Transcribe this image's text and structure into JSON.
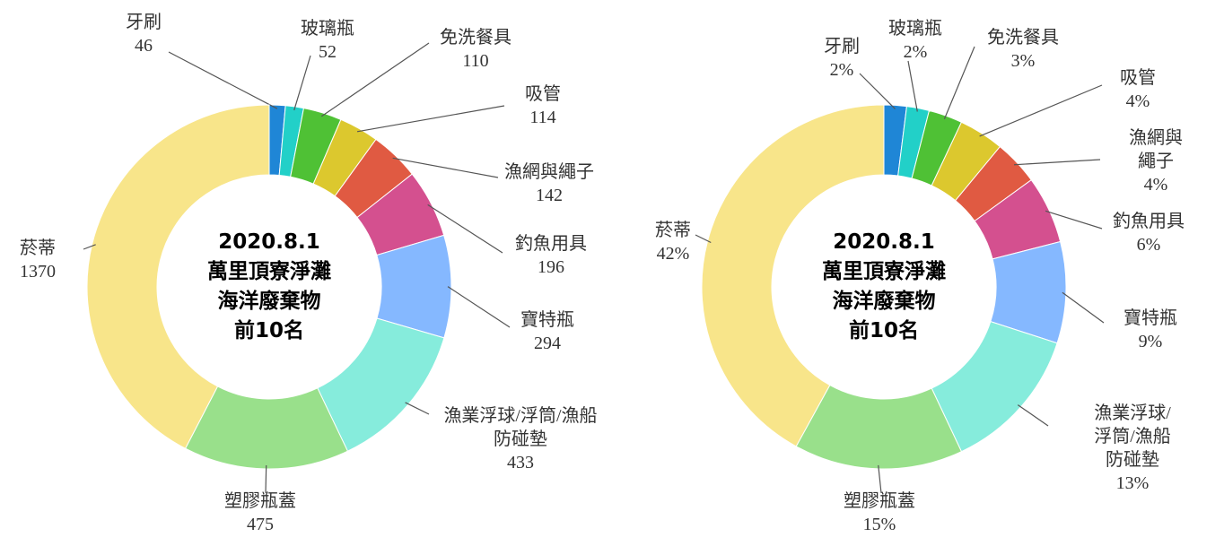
{
  "chart_data": [
    {
      "type": "donut",
      "center_lines": [
        "2020.8.1",
        "萬里頂寮淨灘",
        "海洋廢棄物",
        "前10名"
      ],
      "categories": [
        "牙刷",
        "玻璃瓶",
        "免洗餐具",
        "吸管",
        "漁網與繩子",
        "釣魚用具",
        "寶特瓶",
        "漁業浮球/浮筒/漁船防碰墊",
        "塑膠瓶蓋",
        "菸蒂"
      ],
      "values": [
        46,
        52,
        110,
        114,
        142,
        196,
        294,
        433,
        475,
        1370
      ],
      "colors": [
        "#1f86d6",
        "#22d0c8",
        "#4fc135",
        "#dcc82e",
        "#e05a42",
        "#d4508f",
        "#85b8ff",
        "#86ecdc",
        "#99e08b",
        "#f8e58a"
      ]
    },
    {
      "type": "donut",
      "center_lines": [
        "2020.8.1",
        "萬里頂寮淨灘",
        "海洋廢棄物",
        "前10名"
      ],
      "categories": [
        "牙刷",
        "玻璃瓶",
        "免洗餐具",
        "吸管",
        "漁網與繩子",
        "釣魚用具",
        "寶特瓶",
        "漁業浮球/浮筒/漁船防碰墊",
        "塑膠瓶蓋",
        "菸蒂"
      ],
      "values": [
        2,
        2,
        3,
        4,
        4,
        6,
        9,
        13,
        15,
        42
      ],
      "value_labels": [
        "2%",
        "2%",
        "3%",
        "4%",
        "4%",
        "6%",
        "9%",
        "13%",
        "15%",
        "42%"
      ],
      "colors": [
        "#1f86d6",
        "#22d0c8",
        "#4fc135",
        "#dcc82e",
        "#e05a42",
        "#d4508f",
        "#85b8ff",
        "#86ecdc",
        "#99e08b",
        "#f8e58a"
      ]
    }
  ]
}
